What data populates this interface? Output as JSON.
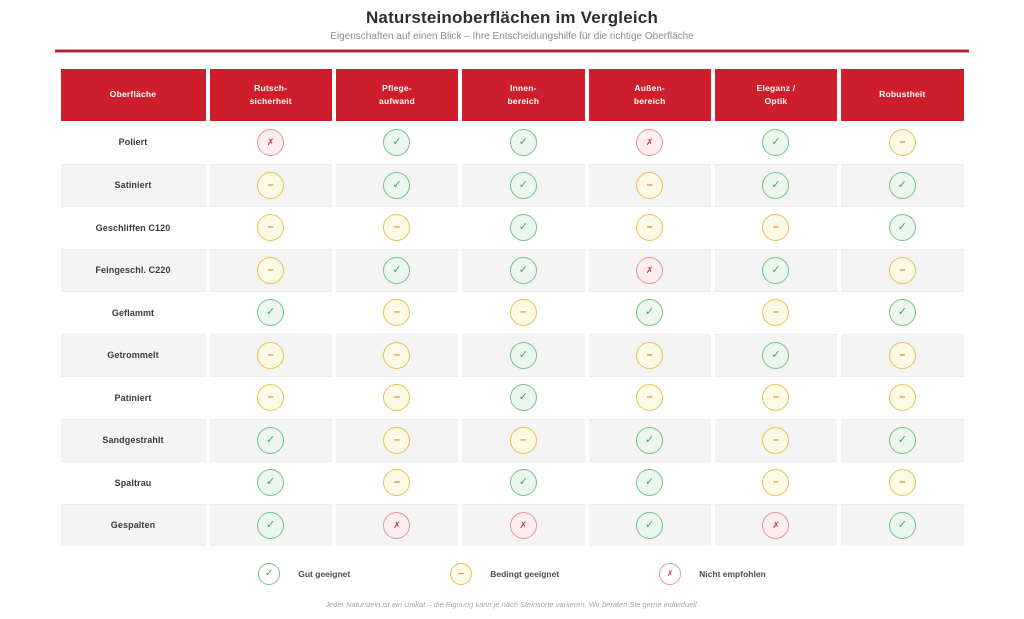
{
  "title": "Natursteinoberflächen im Vergleich",
  "subtitle": "Eigenschaften auf einen Blick – Ihre Entscheidungshilfe für die richtige Oberfläche",
  "footnote": "Jeder Naturstein ist ein Unikat – die Eignung kann je nach Steinsorte variieren. Wir beraten Sie gerne individuell.",
  "colors": {
    "accent_red": "#ce1e2c",
    "divider_red": "#ad1f2e",
    "good_green_border": "#74c185",
    "good_green_fill": "#ebf7ee",
    "good_green_glyph": "#459f5c",
    "limited_yellow_border": "#e6c24b",
    "limited_yellow_fill": "#fdf9e7",
    "limited_orange_glyph": "#e0812e",
    "no_red_border": "#e4939e",
    "no_red_fill": "#fceef0",
    "no_red_glyph": "#c23753",
    "row_stripe": "#f4f4f4"
  },
  "chart_data": {
    "type": "table",
    "columns": [
      "Oberfläche",
      "Rutsch-\nsicherheit",
      "Pflege-\naufwand",
      "Innen-\nbereich",
      "Außen-\nbereich",
      "Eleganz /\nOptik",
      "Robustheit"
    ],
    "rows": [
      {
        "label": "Poliert",
        "values": [
          "no",
          "good",
          "good",
          "no",
          "good",
          "limited"
        ]
      },
      {
        "label": "Satiniert",
        "values": [
          "limited",
          "good",
          "good",
          "limited",
          "good",
          "good"
        ]
      },
      {
        "label": "Geschliffen C120",
        "values": [
          "limited",
          "limited",
          "good",
          "limited",
          "limited",
          "good"
        ]
      },
      {
        "label": "Feingeschl. C220",
        "values": [
          "limited",
          "good",
          "good",
          "no",
          "good",
          "limited"
        ]
      },
      {
        "label": "Geflammt",
        "values": [
          "good",
          "limited",
          "limited",
          "good",
          "limited",
          "good"
        ]
      },
      {
        "label": "Getrommelt",
        "values": [
          "limited",
          "limited",
          "good",
          "limited",
          "good",
          "limited"
        ]
      },
      {
        "label": "Patiniert",
        "values": [
          "limited",
          "limited",
          "good",
          "limited",
          "limited",
          "limited"
        ]
      },
      {
        "label": "Sandgestrahlt",
        "values": [
          "good",
          "limited",
          "limited",
          "good",
          "limited",
          "good"
        ]
      },
      {
        "label": "Spaltrau",
        "values": [
          "good",
          "limited",
          "good",
          "good",
          "limited",
          "limited"
        ]
      },
      {
        "label": "Gespalten",
        "values": [
          "good",
          "no",
          "no",
          "good",
          "no",
          "good"
        ]
      }
    ],
    "rating_levels": {
      "good": {
        "glyph": "✓",
        "label": "Gut geeignet"
      },
      "limited": {
        "glyph": "–",
        "label": "Bedingt geeignet"
      },
      "no": {
        "glyph": "✗",
        "label": "Nicht empfohlen"
      }
    },
    "legend_order": [
      "good",
      "limited",
      "no"
    ]
  }
}
